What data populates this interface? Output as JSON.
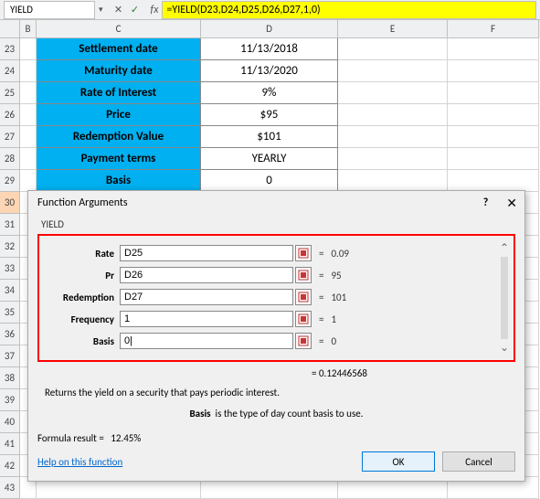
{
  "nameBox": "YIELD",
  "formulaBar": "=YIELD(D23,D24,D25,D26,D27,1,0)",
  "columns": [
    "B",
    "C",
    "D",
    "E",
    "F"
  ],
  "rowStart": 23,
  "dataRows": [
    {
      "label": "Settlement date",
      "value": "11/13/2018"
    },
    {
      "label": "Maturity date",
      "value": "11/13/2020"
    },
    {
      "label": "Rate of Interest",
      "value": "9%"
    },
    {
      "label": "Price",
      "value": "$95"
    },
    {
      "label": "Redemption Value",
      "value": "$101"
    },
    {
      "label": "Payment terms",
      "value": "YEARLY"
    },
    {
      "label": "Basis",
      "value": "0"
    }
  ],
  "dialog": {
    "title": "Function Arguments",
    "fnName": "YIELD",
    "args": [
      {
        "label": "Rate",
        "input": "D25",
        "value": "0.09"
      },
      {
        "label": "Pr",
        "input": "D26",
        "value": "95"
      },
      {
        "label": "Redemption",
        "input": "D27",
        "value": "101"
      },
      {
        "label": "Frequency",
        "input": "1",
        "value": "1"
      },
      {
        "label": "Basis",
        "input": "0|",
        "value": "0"
      }
    ],
    "computed": "= 0.12446568",
    "desc": "Returns the yield on a security that pays periodic interest.",
    "argHelpLabel": "Basis",
    "argHelpText": "is the type of day count basis to use.",
    "formulaResultLabel": "Formula result =",
    "formulaResult": "12.45%",
    "helpLink": "Help on this function",
    "okBtn": "OK",
    "cancelBtn": "Cancel"
  },
  "colors": {
    "labelBg": "#00b0f0",
    "formulaHighlight": "#ffff00",
    "argBoxBorder": "#ff0000",
    "orangeRow": "#fcd5b4"
  }
}
